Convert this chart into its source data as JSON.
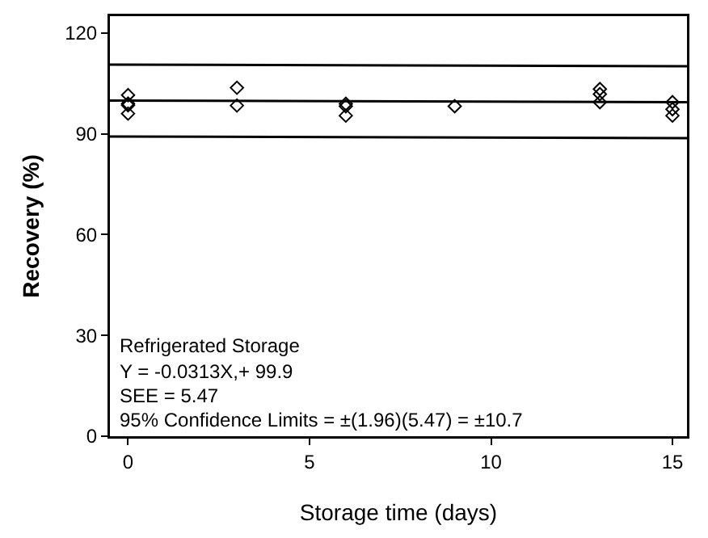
{
  "chart_data": {
    "type": "scatter",
    "xlabel": "Storage time (days)",
    "ylabel": "Recovery (%)",
    "xlim": [
      -0.5,
      15.4
    ],
    "xticks": [
      0,
      5,
      10,
      15
    ],
    "ylim": [
      0,
      125
    ],
    "yticks": [
      0,
      30,
      60,
      90,
      120
    ],
    "grid": false,
    "marker": "diamond",
    "series": [
      {
        "color": "#000000",
        "x": [
          0,
          0,
          0,
          0,
          3,
          3,
          6,
          6,
          6,
          9,
          13,
          13,
          13,
          15,
          15,
          15
        ],
        "values": [
          101.5,
          99,
          98.5,
          96,
          103.7,
          98.4,
          98.9,
          98.2,
          95.4,
          98.2,
          103.3,
          101.8,
          99.4,
          99.4,
          97.3,
          95.4
        ]
      },
      {
        "type": "line",
        "marker": "none",
        "color": "#000000",
        "line_style": "solid",
        "x": [
          -0.5,
          15.4
        ],
        "values": [
          99.9,
          99.4
        ]
      },
      {
        "type": "line",
        "marker": "none",
        "color": "#000000",
        "line_style": "solid",
        "x": [
          -0.5,
          15.4
        ],
        "values": [
          110.6,
          110.1
        ]
      },
      {
        "type": "line",
        "marker": "none",
        "color": "#000000",
        "line_style": "solid",
        "x": [
          -0.5,
          15.4
        ],
        "values": [
          89.2,
          88.7
        ]
      }
    ],
    "annotations": [
      "Refrigerated Storage",
      "Y = -0.0313X,+ 99.9",
      "SEE = 5.47",
      "95% Confidence Limits = ±(1.96)(5.47) = ±10.7"
    ]
  }
}
